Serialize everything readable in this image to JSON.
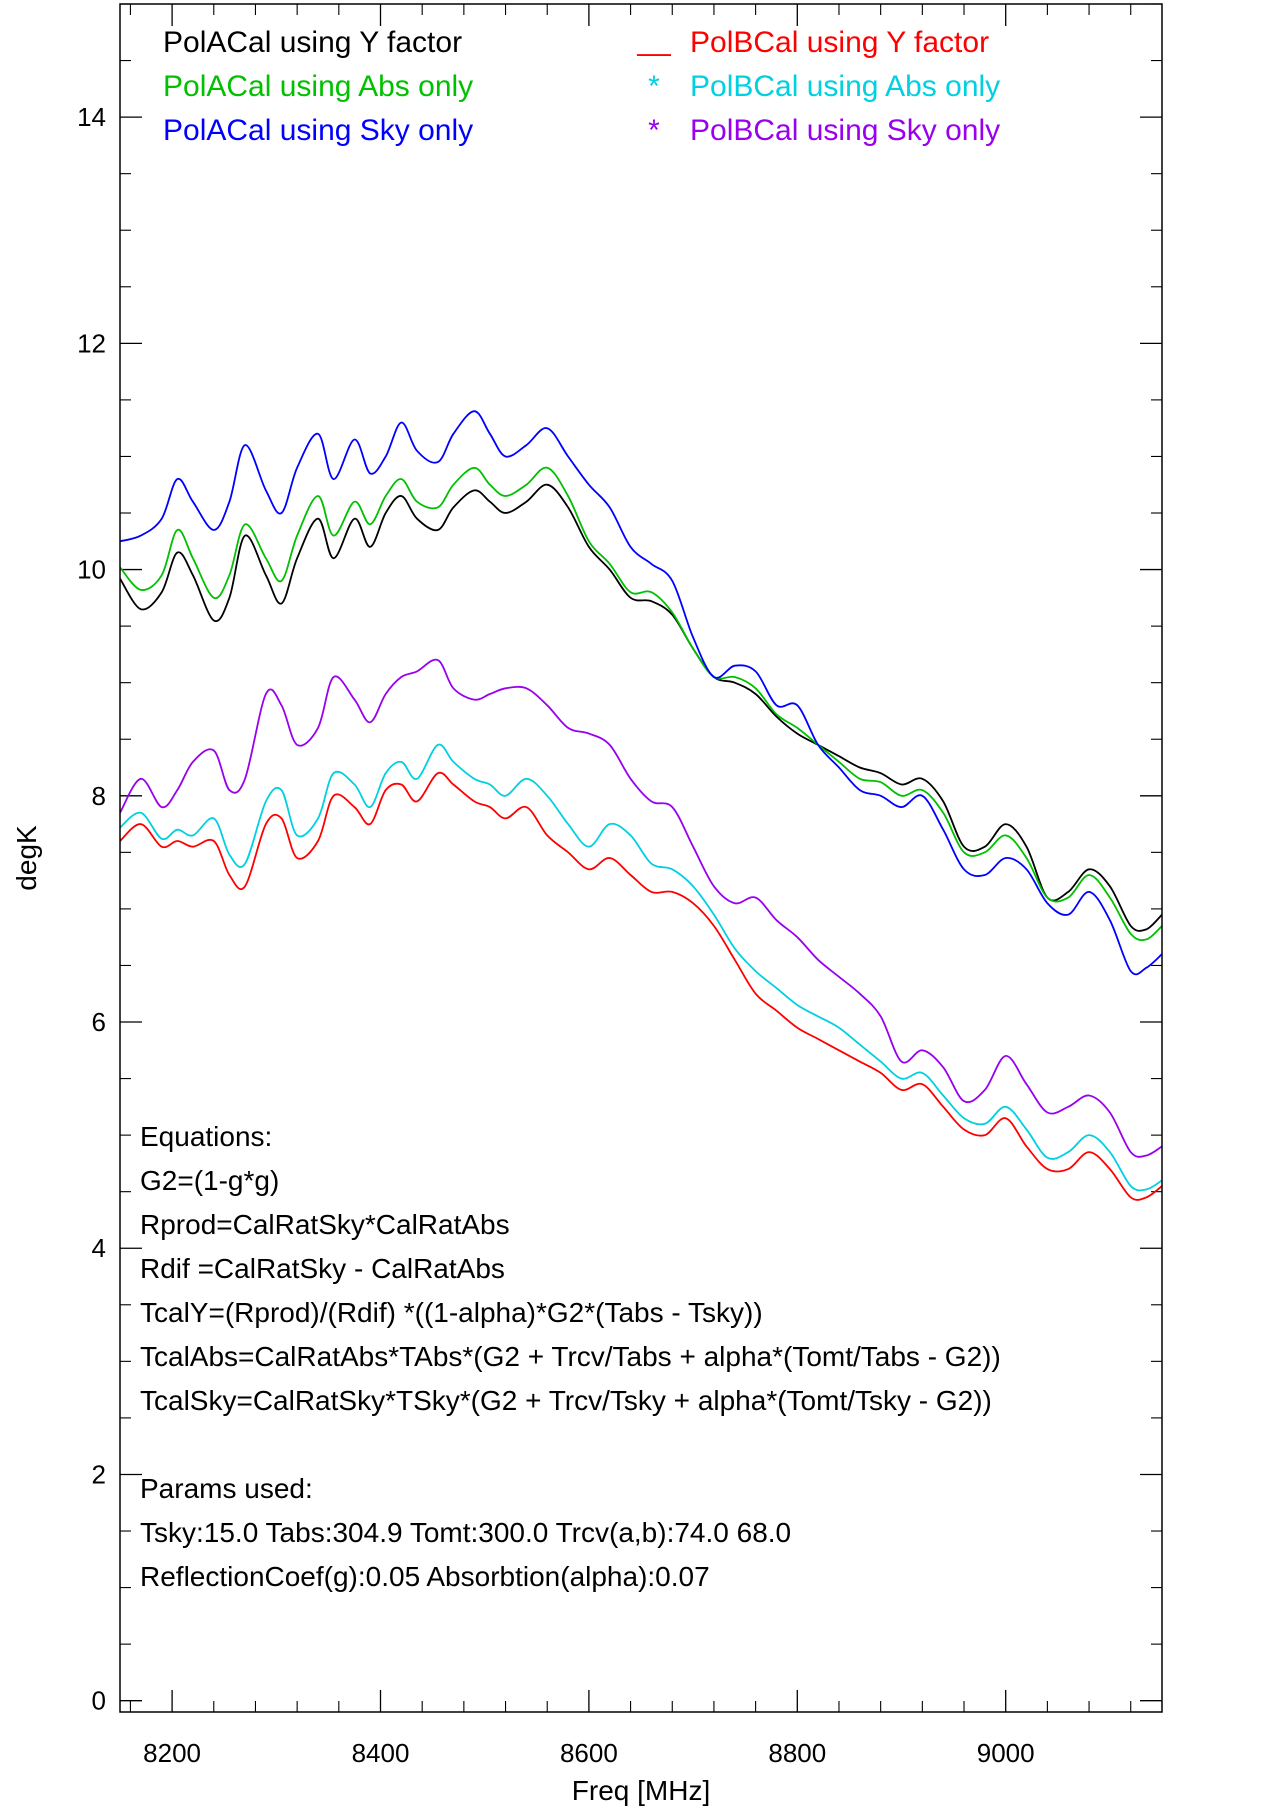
{
  "chart_data": {
    "type": "line",
    "title": "",
    "xlabel": "Freq [MHz]",
    "ylabel": "degK",
    "xlim": [
      8150,
      9150
    ],
    "ylim": [
      -0.1,
      15
    ],
    "xticks": [
      8200,
      8400,
      8600,
      8800,
      9000
    ],
    "yticks": [
      0,
      2,
      4,
      6,
      8,
      10,
      12,
      14
    ],
    "xtick_labels": [
      "8200",
      "8400",
      "8600",
      "8800",
      "9000"
    ],
    "ytick_labels": [
      "0",
      "2",
      "4",
      "6",
      "8",
      "10",
      "12",
      "14"
    ],
    "x_minor_step": 40,
    "y_minor_step": 0.5,
    "grid": false,
    "legend_position": "top",
    "legend": [
      {
        "marker": "",
        "label": "PolACal using Y factor",
        "color": "#000000"
      },
      {
        "marker": "",
        "label": "PolACal using Abs only",
        "color": "#00c000"
      },
      {
        "marker": "",
        "label": "PolACal using Sky only",
        "color": "#0000ff"
      },
      {
        "marker": "__",
        "label": "PolBCal using Y factor",
        "color": "#ff0000"
      },
      {
        "marker": "*",
        "label": "PolBCal using Abs only",
        "color": "#00d0e0"
      },
      {
        "marker": "*",
        "label": "PolBCal using Sky only",
        "color": "#9900ee"
      }
    ],
    "x": [
      8150,
      8170,
      8190,
      8205,
      8220,
      8240,
      8255,
      8270,
      8290,
      8305,
      8320,
      8340,
      8355,
      8375,
      8390,
      8405,
      8420,
      8435,
      8455,
      8470,
      8490,
      8505,
      8520,
      8540,
      8560,
      8580,
      8600,
      8620,
      8640,
      8660,
      8680,
      8700,
      8720,
      8740,
      8760,
      8780,
      8800,
      8820,
      8840,
      8860,
      8880,
      8900,
      8920,
      8940,
      8960,
      8980,
      9000,
      9020,
      9040,
      9060,
      9080,
      9100,
      9120,
      9135,
      9150
    ],
    "series": [
      {
        "label": "PolACal using Y factor",
        "color": "#000000",
        "values": [
          9.92,
          9.65,
          9.8,
          10.15,
          9.95,
          9.55,
          9.75,
          10.3,
          9.95,
          9.7,
          10.1,
          10.45,
          10.1,
          10.45,
          10.2,
          10.5,
          10.65,
          10.45,
          10.35,
          10.55,
          10.7,
          10.6,
          10.5,
          10.6,
          10.75,
          10.55,
          10.2,
          10.0,
          9.75,
          9.72,
          9.6,
          9.3,
          9.05,
          9.0,
          8.9,
          8.7,
          8.55,
          8.45,
          8.35,
          8.25,
          8.2,
          8.1,
          8.15,
          7.95,
          7.55,
          7.55,
          7.75,
          7.55,
          7.1,
          7.15,
          7.35,
          7.2,
          6.85,
          6.82,
          6.95
        ]
      },
      {
        "label": "PolACal using Abs only",
        "color": "#00c000",
        "values": [
          10.02,
          9.82,
          9.95,
          10.35,
          10.1,
          9.75,
          9.95,
          10.4,
          10.1,
          9.9,
          10.3,
          10.65,
          10.3,
          10.6,
          10.4,
          10.65,
          10.8,
          10.6,
          10.55,
          10.75,
          10.9,
          10.75,
          10.65,
          10.75,
          10.9,
          10.65,
          10.25,
          10.05,
          9.8,
          9.8,
          9.62,
          9.3,
          9.05,
          9.05,
          8.95,
          8.72,
          8.6,
          8.45,
          8.3,
          8.15,
          8.12,
          8.0,
          8.05,
          7.85,
          7.5,
          7.5,
          7.65,
          7.45,
          7.1,
          7.1,
          7.3,
          7.1,
          6.78,
          6.73,
          6.85
        ]
      },
      {
        "label": "PolACal using Sky only",
        "color": "#0000ff",
        "values": [
          10.25,
          10.3,
          10.45,
          10.8,
          10.6,
          10.35,
          10.6,
          11.1,
          10.7,
          10.5,
          10.9,
          11.2,
          10.8,
          11.15,
          10.85,
          11.0,
          11.3,
          11.05,
          10.95,
          11.2,
          11.4,
          11.2,
          11.0,
          11.1,
          11.25,
          11.0,
          10.75,
          10.55,
          10.2,
          10.05,
          9.9,
          9.4,
          9.05,
          9.15,
          9.1,
          8.8,
          8.8,
          8.45,
          8.25,
          8.05,
          8.0,
          7.9,
          8.0,
          7.7,
          7.35,
          7.3,
          7.45,
          7.35,
          7.05,
          6.95,
          7.15,
          6.9,
          6.45,
          6.48,
          6.6
        ]
      },
      {
        "label": "PolBCal using Y factor",
        "color": "#ff0000",
        "values": [
          7.6,
          7.75,
          7.55,
          7.6,
          7.55,
          7.6,
          7.3,
          7.2,
          7.75,
          7.8,
          7.45,
          7.6,
          8.0,
          7.9,
          7.75,
          8.05,
          8.1,
          7.95,
          8.2,
          8.1,
          7.95,
          7.9,
          7.8,
          7.9,
          7.65,
          7.5,
          7.35,
          7.45,
          7.3,
          7.15,
          7.15,
          7.05,
          6.85,
          6.55,
          6.25,
          6.1,
          5.95,
          5.85,
          5.75,
          5.65,
          5.55,
          5.4,
          5.45,
          5.25,
          5.05,
          5.0,
          5.15,
          4.9,
          4.7,
          4.7,
          4.85,
          4.7,
          4.45,
          4.45,
          4.55
        ]
      },
      {
        "label": "PolBCal using Abs only",
        "color": "#00d0e0",
        "values": [
          7.72,
          7.85,
          7.62,
          7.7,
          7.65,
          7.8,
          7.48,
          7.4,
          7.95,
          8.05,
          7.65,
          7.8,
          8.2,
          8.1,
          7.9,
          8.2,
          8.3,
          8.15,
          8.45,
          8.3,
          8.15,
          8.1,
          8.0,
          8.15,
          8.0,
          7.75,
          7.55,
          7.75,
          7.65,
          7.4,
          7.35,
          7.2,
          6.95,
          6.65,
          6.45,
          6.3,
          6.15,
          6.05,
          5.95,
          5.8,
          5.65,
          5.5,
          5.55,
          5.35,
          5.15,
          5.1,
          5.25,
          5.05,
          4.8,
          4.85,
          5.0,
          4.85,
          4.55,
          4.52,
          4.6
        ]
      },
      {
        "label": "PolBCal using Sky only",
        "color": "#9900ee",
        "values": [
          7.85,
          8.15,
          7.9,
          8.05,
          8.3,
          8.4,
          8.05,
          8.15,
          8.9,
          8.8,
          8.45,
          8.6,
          9.05,
          8.85,
          8.65,
          8.9,
          9.05,
          9.1,
          9.2,
          8.95,
          8.85,
          8.9,
          8.95,
          8.95,
          8.8,
          8.6,
          8.55,
          8.45,
          8.15,
          7.95,
          7.9,
          7.55,
          7.2,
          7.05,
          7.1,
          6.9,
          6.75,
          6.55,
          6.4,
          6.25,
          6.05,
          5.65,
          5.75,
          5.6,
          5.3,
          5.4,
          5.7,
          5.45,
          5.2,
          5.25,
          5.35,
          5.2,
          4.85,
          4.82,
          4.9
        ]
      }
    ],
    "annotations": {
      "equations": [
        "Equations:",
        "G2=(1-g*g)",
        "Rprod=CalRatSky*CalRatAbs",
        "Rdif =CalRatSky - CalRatAbs",
        "TcalY=(Rprod)/(Rdif) *((1-alpha)*G2*(Tabs - Tsky))",
        "TcalAbs=CalRatAbs*TAbs*(G2 + Trcv/Tabs + alpha*(Tomt/Tabs - G2))",
        "TcalSky=CalRatSky*TSky*(G2 + Trcv/Tsky + alpha*(Tomt/Tsky - G2))"
      ],
      "params": [
        "Params used:",
        "Tsky:15.0 Tabs:304.9 Tomt:300.0 Trcv(a,b):74.0 68.0",
        "ReflectionCoef(g):0.05 Absorbtion(alpha):0.07"
      ]
    }
  }
}
